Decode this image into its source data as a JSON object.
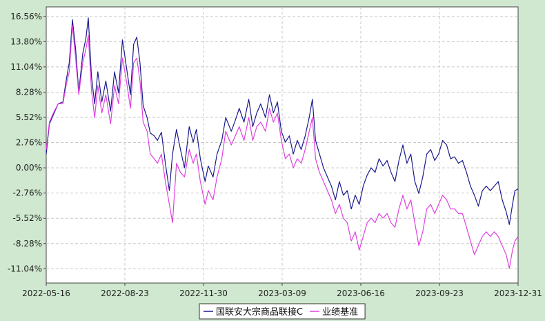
{
  "chart_data": {
    "type": "line",
    "title": "",
    "xlabel": "",
    "ylabel": "",
    "y_ticks": [
      "16.56%",
      "13.80%",
      "11.04%",
      "8.28%",
      "5.52%",
      "2.76%",
      "0.00%",
      "-2.76%",
      "-5.52%",
      "-8.28%",
      "-11.04%"
    ],
    "y_tick_values": [
      16.56,
      13.8,
      11.04,
      8.28,
      5.52,
      2.76,
      0.0,
      -2.76,
      -5.52,
      -8.28,
      -11.04
    ],
    "ylim": [
      -12.6,
      17.6
    ],
    "x_ticks": [
      "2022-05-16",
      "2022-08-23",
      "2022-11-30",
      "2023-03-09",
      "2023-06-16",
      "2023-09-23",
      "2023-12-31"
    ],
    "xlim": [
      "2022-05-16",
      "2023-12-31"
    ],
    "grid": true,
    "legend_position": "bottom-center",
    "series": [
      {
        "name": "国联安大宗商品联接C",
        "color": "#1a1a8c",
        "points": [
          [
            "2022-05-16",
            1.5
          ],
          [
            "2022-05-20",
            4.8
          ],
          [
            "2022-05-25",
            5.8
          ],
          [
            "2022-05-31",
            7.0
          ],
          [
            "2022-06-06",
            7.2
          ],
          [
            "2022-06-10",
            9.5
          ],
          [
            "2022-06-14",
            11.5
          ],
          [
            "2022-06-18",
            16.2
          ],
          [
            "2022-06-22",
            13.0
          ],
          [
            "2022-06-26",
            8.3
          ],
          [
            "2022-07-01",
            12.5
          ],
          [
            "2022-07-05",
            14.2
          ],
          [
            "2022-07-08",
            16.4
          ],
          [
            "2022-07-12",
            10.0
          ],
          [
            "2022-07-16",
            7.0
          ],
          [
            "2022-07-20",
            10.5
          ],
          [
            "2022-07-25",
            7.2
          ],
          [
            "2022-07-30",
            9.5
          ],
          [
            "2022-08-05",
            6.2
          ],
          [
            "2022-08-10",
            10.5
          ],
          [
            "2022-08-15",
            8.2
          ],
          [
            "2022-08-20",
            14.0
          ],
          [
            "2022-08-25",
            11.0
          ],
          [
            "2022-08-30",
            8.0
          ],
          [
            "2022-09-03",
            13.5
          ],
          [
            "2022-09-07",
            14.3
          ],
          [
            "2022-09-11",
            11.5
          ],
          [
            "2022-09-15",
            6.8
          ],
          [
            "2022-09-20",
            5.5
          ],
          [
            "2022-09-24",
            3.8
          ],
          [
            "2022-09-29",
            3.5
          ],
          [
            "2022-10-03",
            3.0
          ],
          [
            "2022-10-08",
            3.9
          ],
          [
            "2022-10-13",
            0.5
          ],
          [
            "2022-10-18",
            -2.5
          ],
          [
            "2022-10-22",
            1.5
          ],
          [
            "2022-10-27",
            4.2
          ],
          [
            "2022-11-01",
            2.0
          ],
          [
            "2022-11-06",
            0.0
          ],
          [
            "2022-11-12",
            4.5
          ],
          [
            "2022-11-17",
            2.8
          ],
          [
            "2022-11-21",
            4.2
          ],
          [
            "2022-11-26",
            1.0
          ],
          [
            "2022-12-02",
            -1.5
          ],
          [
            "2022-12-06",
            0.2
          ],
          [
            "2022-12-12",
            -1.0
          ],
          [
            "2022-12-17",
            1.5
          ],
          [
            "2022-12-23",
            3.0
          ],
          [
            "2022-12-28",
            5.5
          ],
          [
            "2023-01-04",
            4.0
          ],
          [
            "2023-01-09",
            5.2
          ],
          [
            "2023-01-14",
            6.5
          ],
          [
            "2023-01-20",
            5.0
          ],
          [
            "2023-01-26",
            7.5
          ],
          [
            "2023-01-31",
            4.5
          ],
          [
            "2023-02-05",
            6.0
          ],
          [
            "2023-02-10",
            7.0
          ],
          [
            "2023-02-16",
            5.5
          ],
          [
            "2023-02-21",
            8.0
          ],
          [
            "2023-02-26",
            6.0
          ],
          [
            "2023-03-03",
            7.2
          ],
          [
            "2023-03-08",
            4.0
          ],
          [
            "2023-03-13",
            2.8
          ],
          [
            "2023-03-18",
            3.5
          ],
          [
            "2023-03-23",
            1.5
          ],
          [
            "2023-03-28",
            3.0
          ],
          [
            "2023-04-02",
            2.0
          ],
          [
            "2023-04-07",
            3.5
          ],
          [
            "2023-04-12",
            5.5
          ],
          [
            "2023-04-16",
            7.5
          ],
          [
            "2023-04-20",
            3.0
          ],
          [
            "2023-04-25",
            1.5
          ],
          [
            "2023-04-30",
            0.0
          ],
          [
            "2023-05-05",
            -1.0
          ],
          [
            "2023-05-10",
            -2.0
          ],
          [
            "2023-05-15",
            -3.5
          ],
          [
            "2023-05-20",
            -1.5
          ],
          [
            "2023-05-25",
            -3.0
          ],
          [
            "2023-05-30",
            -2.5
          ],
          [
            "2023-06-04",
            -4.5
          ],
          [
            "2023-06-09",
            -3.0
          ],
          [
            "2023-06-14",
            -4.0
          ],
          [
            "2023-06-19",
            -2.0
          ],
          [
            "2023-06-24",
            -0.8
          ],
          [
            "2023-06-29",
            0.0
          ],
          [
            "2023-07-04",
            -0.5
          ],
          [
            "2023-07-09",
            1.0
          ],
          [
            "2023-07-14",
            0.2
          ],
          [
            "2023-07-19",
            0.8
          ],
          [
            "2023-07-24",
            -0.5
          ],
          [
            "2023-07-29",
            -1.5
          ],
          [
            "2023-08-03",
            0.8
          ],
          [
            "2023-08-08",
            2.5
          ],
          [
            "2023-08-13",
            0.5
          ],
          [
            "2023-08-18",
            1.5
          ],
          [
            "2023-08-23",
            -1.5
          ],
          [
            "2023-08-28",
            -2.8
          ],
          [
            "2023-09-02",
            -1.0
          ],
          [
            "2023-09-07",
            1.5
          ],
          [
            "2023-09-12",
            2.0
          ],
          [
            "2023-09-17",
            0.8
          ],
          [
            "2023-09-22",
            1.5
          ],
          [
            "2023-09-27",
            3.0
          ],
          [
            "2023-10-02",
            2.5
          ],
          [
            "2023-10-07",
            1.0
          ],
          [
            "2023-10-12",
            1.2
          ],
          [
            "2023-10-17",
            0.5
          ],
          [
            "2023-10-22",
            0.8
          ],
          [
            "2023-10-27",
            -0.5
          ],
          [
            "2023-11-01",
            -2.0
          ],
          [
            "2023-11-06",
            -3.0
          ],
          [
            "2023-11-11",
            -4.2
          ],
          [
            "2023-11-16",
            -2.5
          ],
          [
            "2023-11-21",
            -2.0
          ],
          [
            "2023-11-26",
            -2.5
          ],
          [
            "2023-12-01",
            -2.0
          ],
          [
            "2023-12-06",
            -1.5
          ],
          [
            "2023-12-11",
            -3.5
          ],
          [
            "2023-12-16",
            -4.8
          ],
          [
            "2023-12-20",
            -6.2
          ],
          [
            "2023-12-24",
            -4.0
          ],
          [
            "2023-12-27",
            -2.5
          ],
          [
            "2023-12-31",
            -2.3
          ]
        ]
      },
      {
        "name": "业绩基准",
        "color": "#e040e0",
        "points": [
          [
            "2022-05-16",
            2.0
          ],
          [
            "2022-05-20",
            5.0
          ],
          [
            "2022-05-25",
            6.0
          ],
          [
            "2022-05-31",
            7.0
          ],
          [
            "2022-06-06",
            7.0
          ],
          [
            "2022-06-10",
            9.0
          ],
          [
            "2022-06-14",
            10.5
          ],
          [
            "2022-06-18",
            15.6
          ],
          [
            "2022-06-22",
            12.0
          ],
          [
            "2022-06-26",
            8.0
          ],
          [
            "2022-07-01",
            11.5
          ],
          [
            "2022-07-05",
            13.0
          ],
          [
            "2022-07-08",
            14.5
          ],
          [
            "2022-07-12",
            8.5
          ],
          [
            "2022-07-16",
            5.5
          ],
          [
            "2022-07-20",
            9.0
          ],
          [
            "2022-07-25",
            6.0
          ],
          [
            "2022-07-30",
            8.0
          ],
          [
            "2022-08-05",
            4.8
          ],
          [
            "2022-08-10",
            9.0
          ],
          [
            "2022-08-15",
            7.0
          ],
          [
            "2022-08-20",
            12.0
          ],
          [
            "2022-08-25",
            9.5
          ],
          [
            "2022-08-30",
            6.5
          ],
          [
            "2022-09-03",
            11.5
          ],
          [
            "2022-09-07",
            12.0
          ],
          [
            "2022-09-11",
            9.5
          ],
          [
            "2022-09-15",
            5.0
          ],
          [
            "2022-09-20",
            4.0
          ],
          [
            "2022-09-24",
            1.5
          ],
          [
            "2022-09-29",
            1.0
          ],
          [
            "2022-10-03",
            0.5
          ],
          [
            "2022-10-08",
            1.5
          ],
          [
            "2022-10-13",
            -1.5
          ],
          [
            "2022-10-18",
            -4.0
          ],
          [
            "2022-10-22",
            -6.0
          ],
          [
            "2022-10-27",
            0.5
          ],
          [
            "2022-11-01",
            -0.5
          ],
          [
            "2022-11-06",
            -1.0
          ],
          [
            "2022-11-12",
            2.0
          ],
          [
            "2022-11-17",
            0.5
          ],
          [
            "2022-11-21",
            1.5
          ],
          [
            "2022-11-26",
            -1.5
          ],
          [
            "2022-12-02",
            -4.0
          ],
          [
            "2022-12-06",
            -2.5
          ],
          [
            "2022-12-12",
            -3.5
          ],
          [
            "2022-12-17",
            -1.0
          ],
          [
            "2022-12-23",
            1.0
          ],
          [
            "2022-12-28",
            4.0
          ],
          [
            "2023-01-04",
            2.5
          ],
          [
            "2023-01-09",
            3.5
          ],
          [
            "2023-01-14",
            4.5
          ],
          [
            "2023-01-20",
            3.0
          ],
          [
            "2023-01-26",
            5.5
          ],
          [
            "2023-01-31",
            3.0
          ],
          [
            "2023-02-05",
            4.5
          ],
          [
            "2023-02-10",
            5.0
          ],
          [
            "2023-02-16",
            4.0
          ],
          [
            "2023-02-21",
            6.5
          ],
          [
            "2023-02-26",
            5.0
          ],
          [
            "2023-03-03",
            6.0
          ],
          [
            "2023-03-08",
            3.0
          ],
          [
            "2023-03-13",
            1.0
          ],
          [
            "2023-03-18",
            1.5
          ],
          [
            "2023-03-23",
            0.0
          ],
          [
            "2023-03-28",
            1.0
          ],
          [
            "2023-04-02",
            0.5
          ],
          [
            "2023-04-07",
            2.0
          ],
          [
            "2023-04-12",
            4.0
          ],
          [
            "2023-04-16",
            5.5
          ],
          [
            "2023-04-20",
            1.0
          ],
          [
            "2023-04-25",
            -0.5
          ],
          [
            "2023-04-30",
            -1.5
          ],
          [
            "2023-05-05",
            -2.5
          ],
          [
            "2023-05-10",
            -3.5
          ],
          [
            "2023-05-15",
            -5.0
          ],
          [
            "2023-05-20",
            -4.0
          ],
          [
            "2023-05-25",
            -5.5
          ],
          [
            "2023-05-30",
            -6.0
          ],
          [
            "2023-06-04",
            -8.0
          ],
          [
            "2023-06-09",
            -7.0
          ],
          [
            "2023-06-14",
            -9.0
          ],
          [
            "2023-06-19",
            -7.5
          ],
          [
            "2023-06-24",
            -6.0
          ],
          [
            "2023-06-29",
            -5.5
          ],
          [
            "2023-07-04",
            -6.0
          ],
          [
            "2023-07-09",
            -5.0
          ],
          [
            "2023-07-14",
            -5.5
          ],
          [
            "2023-07-19",
            -5.0
          ],
          [
            "2023-07-24",
            -6.0
          ],
          [
            "2023-07-29",
            -6.5
          ],
          [
            "2023-08-03",
            -4.5
          ],
          [
            "2023-08-08",
            -3.0
          ],
          [
            "2023-08-13",
            -4.5
          ],
          [
            "2023-08-18",
            -3.5
          ],
          [
            "2023-08-23",
            -6.0
          ],
          [
            "2023-08-28",
            -8.5
          ],
          [
            "2023-09-02",
            -7.0
          ],
          [
            "2023-09-07",
            -4.5
          ],
          [
            "2023-09-12",
            -4.0
          ],
          [
            "2023-09-17",
            -5.0
          ],
          [
            "2023-09-22",
            -4.0
          ],
          [
            "2023-09-27",
            -3.0
          ],
          [
            "2023-10-02",
            -3.5
          ],
          [
            "2023-10-07",
            -4.5
          ],
          [
            "2023-10-12",
            -4.5
          ],
          [
            "2023-10-17",
            -5.0
          ],
          [
            "2023-10-22",
            -5.0
          ],
          [
            "2023-10-27",
            -6.5
          ],
          [
            "2023-11-01",
            -8.0
          ],
          [
            "2023-11-06",
            -9.5
          ],
          [
            "2023-11-11",
            -8.5
          ],
          [
            "2023-11-16",
            -7.5
          ],
          [
            "2023-11-21",
            -7.0
          ],
          [
            "2023-11-26",
            -7.5
          ],
          [
            "2023-12-01",
            -7.0
          ],
          [
            "2023-12-06",
            -7.5
          ],
          [
            "2023-12-11",
            -8.5
          ],
          [
            "2023-12-16",
            -9.5
          ],
          [
            "2023-12-20",
            -11.0
          ],
          [
            "2023-12-24",
            -9.0
          ],
          [
            "2023-12-27",
            -8.0
          ],
          [
            "2023-12-31",
            -7.5
          ]
        ]
      }
    ]
  }
}
